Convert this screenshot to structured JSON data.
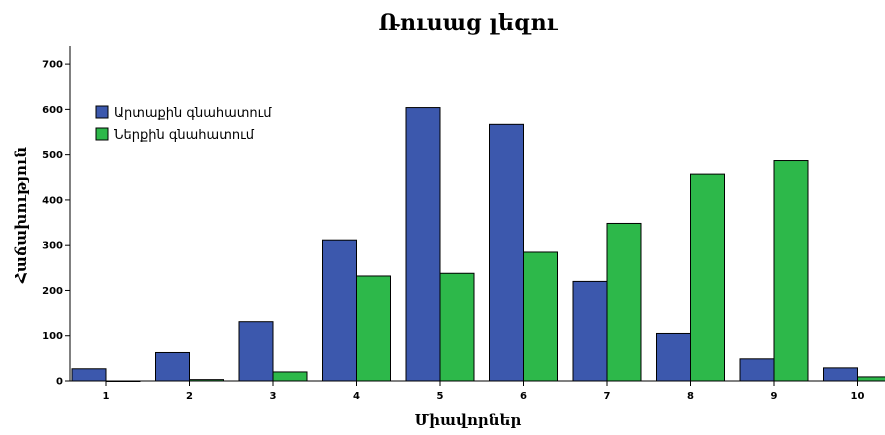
{
  "chart_data": {
    "type": "bar",
    "title": "Ռուսաց լեզու",
    "xlabel": "Միավորներ",
    "ylabel": "Հաճախություն",
    "categories": [
      "1",
      "2",
      "3",
      "4",
      "5",
      "6",
      "7",
      "8",
      "9",
      "10"
    ],
    "ylim": [
      0,
      740
    ],
    "yticks": [
      "0",
      "100",
      "200",
      "300",
      "400",
      "500",
      "600",
      "700"
    ],
    "legend_position": "top-left",
    "grid": false,
    "series": [
      {
        "name": "Արտաքին գնահատում",
        "color": "#3c58ad",
        "values": [
          27,
          63,
          131,
          311,
          604,
          567,
          220,
          105,
          49,
          29
        ]
      },
      {
        "name": "Ներքին գնահատում",
        "color": "#2db84a",
        "values": [
          0,
          3,
          20,
          232,
          238,
          285,
          348,
          457,
          487,
          9
        ]
      }
    ]
  }
}
